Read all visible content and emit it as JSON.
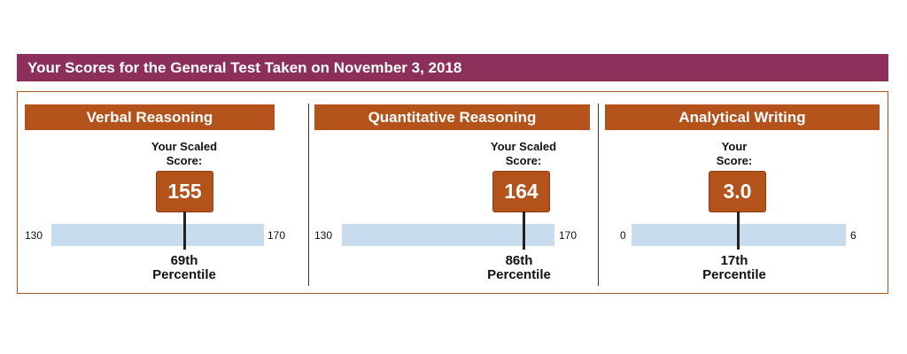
{
  "report": {
    "title": "Your Scores for the General Test Taken on November 3, 2018"
  },
  "sections": [
    {
      "name": "Verbal Reasoning",
      "score_label_line1": "Your Scaled",
      "score_label_line2": "Score:",
      "score": "155",
      "scale_min": "130",
      "scale_max": "170",
      "percentile_value": "69th",
      "percentile_word": "Percentile",
      "position_fraction": 0.625
    },
    {
      "name": "Quantitative Reasoning",
      "score_label_line1": "Your Scaled",
      "score_label_line2": "Score:",
      "score": "164",
      "scale_min": "130",
      "scale_max": "170",
      "percentile_value": "86th",
      "percentile_word": "Percentile",
      "position_fraction": 0.85
    },
    {
      "name": "Analytical Writing",
      "score_label_line1": "Your",
      "score_label_line2": "Score:",
      "score": "3.0",
      "scale_min": "0",
      "scale_max": "6",
      "percentile_value": "17th",
      "percentile_word": "Percentile",
      "position_fraction": 0.5
    }
  ],
  "colors": {
    "title_bar": "#8c2f5a",
    "section_header": "#b3521b",
    "score_bubble": "#b3521b",
    "scale_bar": "#c7dcec"
  }
}
